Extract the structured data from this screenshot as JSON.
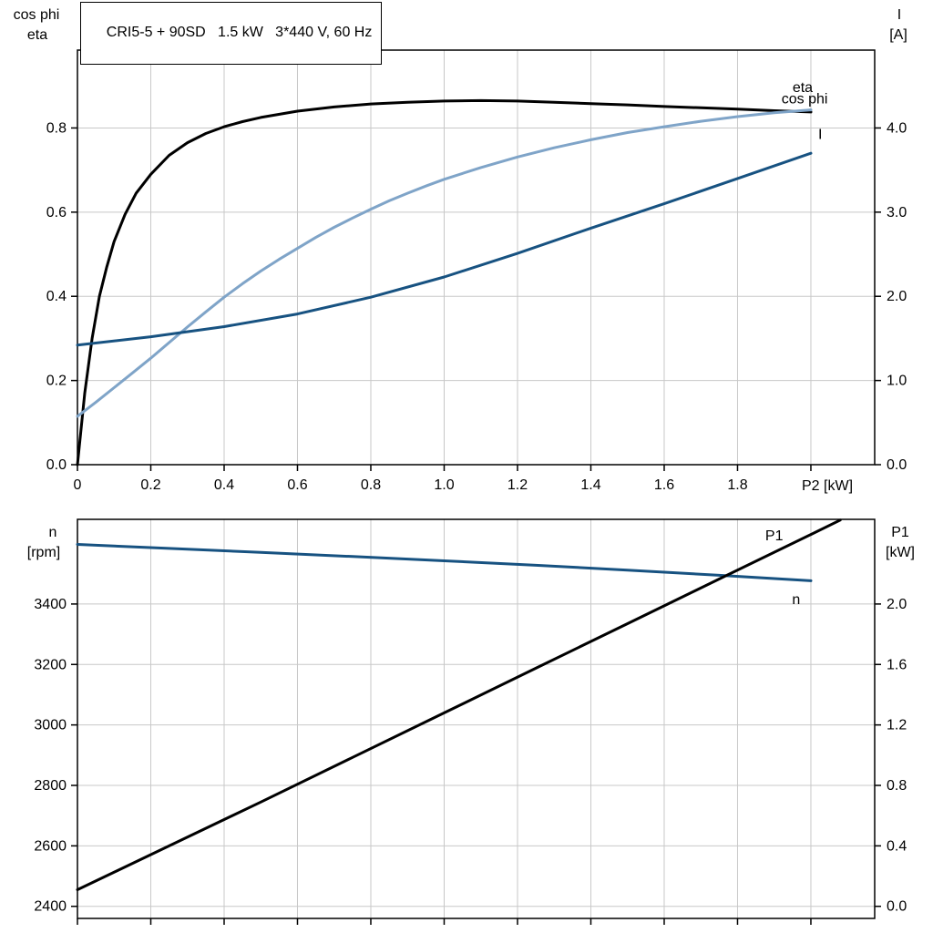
{
  "window": {
    "background": "#ffffff"
  },
  "title_box": {
    "text": "CRI5-5 + 90SD   1.5 kW   3*440 V, 60 Hz"
  },
  "colors": {
    "curve_black": "#000000",
    "curve_light_blue": "#7fa4c8",
    "curve_dark_blue": "#175281",
    "grid": "#c8c8c8",
    "axis": "#000000"
  },
  "chart_data": [
    {
      "type": "line",
      "position": "top",
      "x_axis": {
        "label": "P2 [kW]",
        "min": 0,
        "max": 2.174,
        "ticks": [
          0,
          0.2,
          0.4,
          0.6,
          0.8,
          1.0,
          1.2,
          1.4,
          1.6,
          1.8,
          2.0
        ],
        "tick_labels": [
          "0",
          "0.2",
          "0.4",
          "0.6",
          "0.8",
          "1.0",
          "1.2",
          "1.4",
          "1.6",
          "1.8",
          ""
        ]
      },
      "left_axis": {
        "title_lines": [
          "cos phi",
          "eta"
        ],
        "min": 0,
        "max": 0.985,
        "ticks": [
          0,
          0.2,
          0.4,
          0.6,
          0.8
        ],
        "tick_labels": [
          "0.0",
          "0.2",
          "0.4",
          "0.6",
          "0.8"
        ]
      },
      "right_axis": {
        "title_lines": [
          "I",
          "[A]"
        ],
        "min": 0,
        "max": 4.925,
        "ticks": [
          0,
          1,
          2,
          3,
          4
        ],
        "tick_labels": [
          "0.0",
          "1.0",
          "2.0",
          "3.0",
          "4.0"
        ]
      },
      "series": [
        {
          "name": "eta",
          "color": "#000000",
          "axis": "left",
          "points": [
            [
              0,
              0
            ],
            [
              0.02,
              0.17
            ],
            [
              0.04,
              0.3
            ],
            [
              0.06,
              0.4
            ],
            [
              0.08,
              0.47
            ],
            [
              0.1,
              0.53
            ],
            [
              0.13,
              0.595
            ],
            [
              0.16,
              0.645
            ],
            [
              0.2,
              0.69
            ],
            [
              0.25,
              0.735
            ],
            [
              0.3,
              0.765
            ],
            [
              0.35,
              0.787
            ],
            [
              0.4,
              0.803
            ],
            [
              0.45,
              0.815
            ],
            [
              0.5,
              0.825
            ],
            [
              0.6,
              0.84
            ],
            [
              0.7,
              0.85
            ],
            [
              0.8,
              0.857
            ],
            [
              0.9,
              0.861
            ],
            [
              1,
              0.864
            ],
            [
              1.1,
              0.865
            ],
            [
              1.2,
              0.864
            ],
            [
              1.3,
              0.861
            ],
            [
              1.4,
              0.858
            ],
            [
              1.5,
              0.855
            ],
            [
              1.6,
              0.851
            ],
            [
              1.7,
              0.848
            ],
            [
              1.8,
              0.845
            ],
            [
              1.9,
              0.841
            ],
            [
              2,
              0.838
            ]
          ]
        },
        {
          "name": "cos phi",
          "color": "#7fa4c8",
          "axis": "left",
          "points": [
            [
              0,
              0.115
            ],
            [
              0.05,
              0.148
            ],
            [
              0.1,
              0.183
            ],
            [
              0.15,
              0.218
            ],
            [
              0.2,
              0.253
            ],
            [
              0.25,
              0.29
            ],
            [
              0.3,
              0.327
            ],
            [
              0.35,
              0.363
            ],
            [
              0.4,
              0.398
            ],
            [
              0.45,
              0.43
            ],
            [
              0.5,
              0.46
            ],
            [
              0.55,
              0.488
            ],
            [
              0.6,
              0.514
            ],
            [
              0.65,
              0.54
            ],
            [
              0.7,
              0.564
            ],
            [
              0.75,
              0.586
            ],
            [
              0.8,
              0.607
            ],
            [
              0.85,
              0.627
            ],
            [
              0.9,
              0.645
            ],
            [
              0.95,
              0.662
            ],
            [
              1,
              0.678
            ],
            [
              1.1,
              0.706
            ],
            [
              1.2,
              0.731
            ],
            [
              1.3,
              0.753
            ],
            [
              1.4,
              0.772
            ],
            [
              1.5,
              0.789
            ],
            [
              1.6,
              0.803
            ],
            [
              1.7,
              0.816
            ],
            [
              1.8,
              0.827
            ],
            [
              1.9,
              0.836
            ],
            [
              2,
              0.843
            ]
          ]
        },
        {
          "name": "I",
          "color": "#175281",
          "axis": "right",
          "points": [
            [
              0,
              1.42
            ],
            [
              0.2,
              1.52
            ],
            [
              0.4,
              1.64
            ],
            [
              0.6,
              1.79
            ],
            [
              0.8,
              1.99
            ],
            [
              1,
              2.23
            ],
            [
              1.2,
              2.51
            ],
            [
              1.4,
              2.81
            ],
            [
              1.6,
              3.1
            ],
            [
              1.8,
              3.4
            ],
            [
              2,
              3.7
            ]
          ]
        }
      ],
      "curve_labels": [
        {
          "text": "cos phi",
          "color": "#7fa4c8",
          "axis": "left",
          "x": 1.92,
          "y": 0.858,
          "anchor": "start"
        },
        {
          "text": "eta",
          "color": "#000000",
          "axis": "left",
          "x": 1.95,
          "y": 0.885,
          "anchor": "start"
        },
        {
          "text": "I",
          "color": "#175281",
          "axis": "right",
          "x": 2.02,
          "y": 3.87,
          "anchor": "start"
        }
      ]
    },
    {
      "type": "line",
      "position": "bottom",
      "x_axis": {
        "label": "",
        "min": 0,
        "max": 2.174,
        "ticks": [
          0,
          0.2,
          0.4,
          0.6,
          0.8,
          1.0,
          1.2,
          1.4,
          1.6,
          1.8,
          2.0
        ],
        "tick_labels": [
          "",
          "",
          "",
          "",
          "",
          "",
          "",
          "",
          "",
          "",
          ""
        ]
      },
      "left_axis": {
        "title_lines": [
          "n",
          "[rpm]"
        ],
        "min": 2360,
        "max": 3680,
        "ticks": [
          2400,
          2600,
          2800,
          3000,
          3200,
          3400
        ],
        "tick_labels": [
          "2400",
          "2600",
          "2800",
          "3000",
          "3200",
          "3400"
        ]
      },
      "right_axis": {
        "title_lines": [
          "P1",
          "[kW]"
        ],
        "min": -0.08,
        "max": 2.56,
        "ticks": [
          0,
          0.4,
          0.8,
          1.2,
          1.6,
          2.0
        ],
        "tick_labels": [
          "0.0",
          "0.4",
          "0.8",
          "1.2",
          "1.6",
          "2.0"
        ]
      },
      "series": [
        {
          "name": "n",
          "color": "#175281",
          "axis": "left",
          "points": [
            [
              0,
              3597
            ],
            [
              0.25,
              3584
            ],
            [
              0.5,
              3571
            ],
            [
              0.75,
              3557
            ],
            [
              1,
              3543
            ],
            [
              1.25,
              3528
            ],
            [
              1.5,
              3512
            ],
            [
              1.75,
              3495
            ],
            [
              2,
              3477
            ]
          ]
        },
        {
          "name": "P1",
          "color": "#000000",
          "axis": "right",
          "points": [
            [
              0,
              0.11
            ],
            [
              0.25,
              0.4
            ],
            [
              0.5,
              0.69
            ],
            [
              0.75,
              0.985
            ],
            [
              1,
              1.28
            ],
            [
              1.25,
              1.575
            ],
            [
              1.5,
              1.87
            ],
            [
              1.75,
              2.165
            ],
            [
              2,
              2.46
            ],
            [
              2.08,
              2.555
            ]
          ]
        }
      ],
      "curve_labels": [
        {
          "text": "P1",
          "color": "#000000",
          "axis": "right",
          "x": 1.9,
          "y": 2.42,
          "anchor": "middle"
        },
        {
          "text": "n",
          "color": "#175281",
          "axis": "right",
          "x": 1.96,
          "y": 2.0,
          "anchor": "middle"
        }
      ]
    }
  ]
}
